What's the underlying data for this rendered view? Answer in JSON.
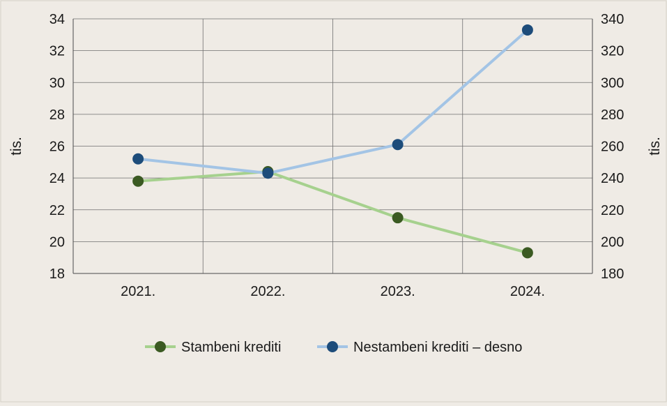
{
  "chart_data": {
    "type": "line",
    "categories": [
      "2021.",
      "2022.",
      "2023.",
      "2024."
    ],
    "series": [
      {
        "name": "Stambeni krediti",
        "axis": "left",
        "values": [
          23.8,
          24.4,
          21.5,
          19.3
        ],
        "line_color": "#a6d18e",
        "marker_color": "#3b5a22"
      },
      {
        "name": "Nestambeni krediti – desno",
        "axis": "right",
        "values": [
          252,
          243,
          261,
          333
        ],
        "line_color": "#a3c4e5",
        "marker_color": "#1d4c7a"
      }
    ],
    "y_left": {
      "label": "tis.",
      "min": 18,
      "max": 34,
      "ticks": [
        18,
        20,
        22,
        24,
        26,
        28,
        30,
        32,
        34
      ]
    },
    "y_right": {
      "label": "tis.",
      "min": 180,
      "max": 340,
      "ticks": [
        180,
        200,
        220,
        240,
        260,
        280,
        300,
        320,
        340
      ]
    },
    "grid": true,
    "legend_position": "bottom"
  }
}
